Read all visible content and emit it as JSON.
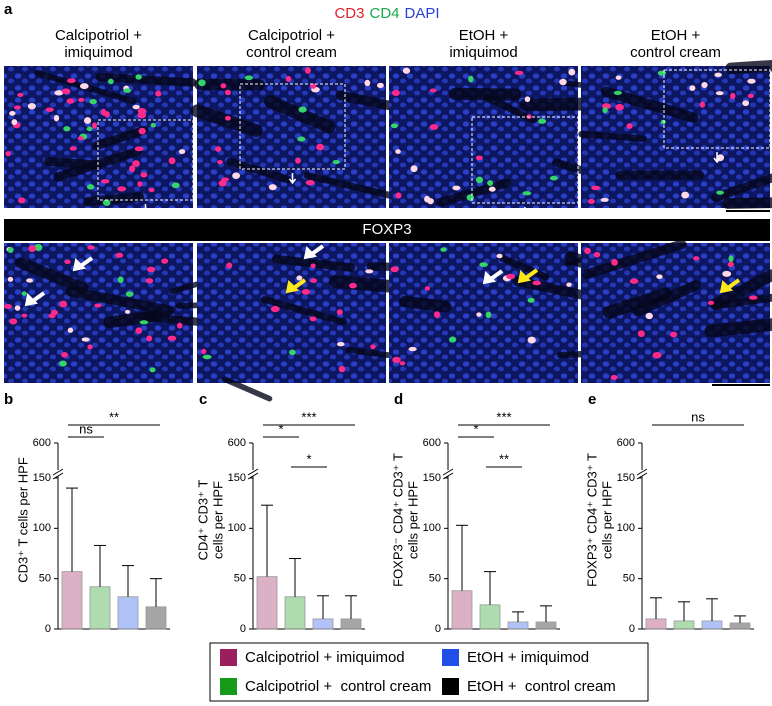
{
  "figure": {
    "panel_a": {
      "label": "a",
      "channels": [
        {
          "text": "CD3",
          "color": "#e0202a"
        },
        {
          "text": "CD4",
          "color": "#17a84a"
        },
        {
          "text": "DAPI",
          "color": "#2a3fd8"
        }
      ],
      "columns": [
        [
          "Calcipotriol +",
          "imiquimod"
        ],
        [
          "Calcipotriol +",
          "control cream"
        ],
        [
          "EtOH +",
          "imiquimod"
        ],
        [
          "EtOH +",
          "control cream"
        ]
      ],
      "stain_label": "FOXP3"
    },
    "legend": [
      {
        "name": "Calcipotriol + imiquimod",
        "color": "#9b1f5c"
      },
      {
        "name": "EtOH + imiquimod",
        "color": "#1f4fe6"
      },
      {
        "name": "Calcipotriol +  control cream",
        "color": "#169a1a"
      },
      {
        "name": "EtOH +  control cream",
        "color": "#000000"
      }
    ]
  },
  "chart_data": [
    {
      "type": "bar",
      "label": "b",
      "ylabel": [
        "CD3⁺ T cells per HPF"
      ],
      "categories": [
        null,
        null,
        null,
        null
      ],
      "values": [
        57,
        42,
        32,
        22
      ],
      "errors": [
        83,
        41,
        31,
        28
      ],
      "annotations": [
        "ns",
        "**"
      ],
      "ylim": [
        0,
        600
      ],
      "ybreak": 150,
      "yticks": [
        0,
        50,
        100,
        150,
        600
      ]
    },
    {
      "type": "bar",
      "label": "c",
      "ylabel": [
        "CD4⁺ CD3⁺ T",
        "cells per HPF"
      ],
      "categories": [
        null,
        null,
        null,
        null
      ],
      "values": [
        52,
        32,
        10,
        10
      ],
      "errors": [
        71,
        38,
        23,
        23
      ],
      "annotations": [
        "*",
        "*",
        "***"
      ],
      "ylim": [
        0,
        600
      ],
      "ybreak": 150,
      "yticks": [
        0,
        50,
        100,
        150,
        600
      ]
    },
    {
      "type": "bar",
      "label": "d",
      "ylabel": [
        "FOXP3⁻ CD4⁺ CD3⁺ T",
        "cells per HPF"
      ],
      "categories": [
        null,
        null,
        null,
        null
      ],
      "values": [
        38,
        24,
        7,
        7
      ],
      "errors": [
        65,
        33,
        10,
        16
      ],
      "annotations": [
        "*",
        "**",
        "***"
      ],
      "ylim": [
        0,
        600
      ],
      "ybreak": 150,
      "yticks": [
        0,
        50,
        100,
        150,
        600
      ]
    },
    {
      "type": "bar",
      "label": "e",
      "ylabel": [
        "FOXP3⁺ CD4⁺ CD3⁺ T",
        "cells per HPF"
      ],
      "categories": [
        null,
        null,
        null,
        null
      ],
      "values": [
        10,
        8,
        8,
        6
      ],
      "errors": [
        21,
        19,
        22,
        7
      ],
      "annotations": [
        "ns"
      ],
      "ylim": [
        0,
        600
      ],
      "ybreak": 150,
      "yticks": [
        0,
        50,
        100,
        150,
        600
      ]
    }
  ]
}
